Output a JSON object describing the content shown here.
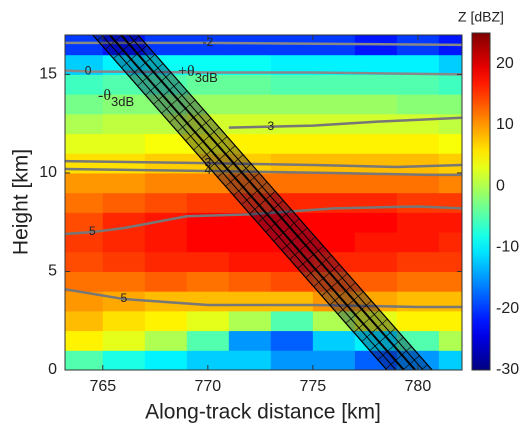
{
  "chart_data": {
    "type": "heatmap",
    "xlabel": "Along-track distance [km]",
    "ylabel": "Height [km]",
    "xlim": [
      763.2,
      782.1
    ],
    "ylim": [
      0,
      17
    ],
    "xticks": [
      765,
      770,
      775,
      780
    ],
    "yticks": [
      0,
      5,
      10,
      15
    ],
    "x_edges": [
      763,
      765,
      767,
      769,
      771,
      773,
      775,
      777,
      779,
      781,
      783
    ],
    "y_edges": [
      0,
      1,
      2,
      3,
      4,
      5,
      6,
      7,
      8,
      9,
      10,
      11,
      12,
      13,
      14,
      15,
      16,
      17
    ],
    "z": [
      [
        -5,
        -8,
        -10,
        -12,
        -12,
        -15,
        -15,
        -18,
        -15,
        -12
      ],
      [
        5,
        3,
        0,
        -5,
        -15,
        -18,
        -12,
        -10,
        -5,
        0
      ],
      [
        8,
        6,
        5,
        3,
        0,
        -5,
        0,
        3,
        5,
        5
      ],
      [
        10,
        9,
        8,
        8,
        8,
        8,
        10,
        9,
        8,
        8
      ],
      [
        12,
        12,
        13,
        12,
        13,
        14,
        13,
        13,
        12,
        12
      ],
      [
        14,
        15,
        16,
        16,
        17,
        17,
        16,
        16,
        15,
        15
      ],
      [
        15,
        16,
        17,
        18,
        18,
        18,
        18,
        17,
        17,
        16
      ],
      [
        14,
        16,
        17,
        18,
        18,
        18,
        18,
        18,
        17,
        17
      ],
      [
        12,
        13,
        14,
        15,
        15,
        16,
        16,
        16,
        15,
        15
      ],
      [
        10,
        10,
        11,
        11,
        12,
        12,
        12,
        12,
        12,
        11
      ],
      [
        6,
        6,
        7,
        7,
        7,
        8,
        8,
        8,
        8,
        7
      ],
      [
        3,
        3,
        4,
        4,
        5,
        5,
        5,
        5,
        5,
        4
      ],
      [
        0,
        1,
        1,
        2,
        2,
        2,
        2,
        2,
        2,
        1
      ],
      [
        -3,
        -2,
        -2,
        -1,
        -1,
        -1,
        -1,
        -1,
        -2,
        -2
      ],
      [
        -6,
        -5,
        -5,
        -4,
        -4,
        -5,
        -5,
        -5,
        -5,
        -6
      ],
      [
        -12,
        -10,
        -9,
        -9,
        -9,
        -10,
        -10,
        -10,
        -10,
        -12
      ],
      [
        -20,
        -22,
        -20,
        -20,
        -20,
        -20,
        -20,
        -22,
        -20,
        -22
      ]
    ],
    "colorbar": {
      "label": "Z [dBZ]",
      "lim": [
        -30,
        25
      ],
      "ticks": [
        -30,
        -20,
        -10,
        0,
        10,
        20
      ],
      "colormap": "jet"
    },
    "contours": [
      {
        "level": 5,
        "color": "#777777",
        "x": [
          763.2,
          764.5,
          766,
          769,
          772,
          776,
          780,
          782.1
        ],
        "y": [
          6.9,
          7.0,
          7.2,
          7.8,
          7.9,
          8.2,
          8.3,
          8.2
        ]
      },
      {
        "level": 5,
        "color": "#777777",
        "x": [
          763.2,
          766,
          770,
          775,
          780,
          782.1
        ],
        "y": [
          4.1,
          3.6,
          3.3,
          3.3,
          3.2,
          3.2
        ]
      },
      {
        "level": 4,
        "color": "#777777",
        "x": [
          763.2,
          770,
          776,
          780.5,
          782.1
        ],
        "y": [
          10.2,
          10.1,
          10.0,
          9.9,
          9.9
        ]
      },
      {
        "level": 3,
        "color": "#777777",
        "x": [
          763.2,
          770,
          775,
          779,
          782.1
        ],
        "y": [
          10.6,
          10.5,
          10.4,
          10.3,
          10.4
        ]
      },
      {
        "level": 3,
        "color": "#777777",
        "x": [
          771,
          773,
          775,
          778,
          782.1
        ],
        "y": [
          12.3,
          12.35,
          12.4,
          12.6,
          12.8
        ]
      },
      {
        "level": 0,
        "color": "#888888",
        "x": [
          763.2,
          764.3,
          770,
          775,
          782.1
        ],
        "y": [
          15.2,
          15.15,
          15.1,
          15.1,
          15.0
        ]
      },
      {
        "level": -2,
        "color": "#888888",
        "x": [
          763.2,
          770,
          776,
          782.1
        ],
        "y": [
          16.6,
          16.6,
          16.55,
          16.5
        ]
      }
    ],
    "beam": {
      "x": [
        765.6,
        779.6
      ],
      "y": [
        17,
        0
      ]
    },
    "annotations": [
      {
        "text": "+θ",
        "sub": "3dB"
      },
      {
        "text": "-θ",
        "sub": "3dB"
      }
    ]
  }
}
